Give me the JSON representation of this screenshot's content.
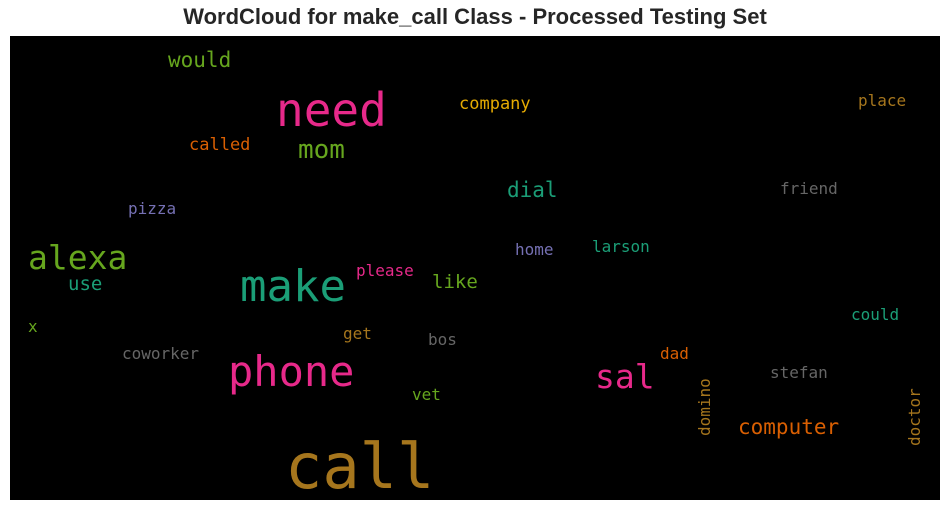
{
  "title": "WordCloud for make_call Class - Processed Testing Set",
  "chart_data": {
    "type": "wordcloud",
    "background": "#000000",
    "words": [
      {
        "text": "call",
        "color": "#a6761d",
        "rotate": false
      },
      {
        "text": "make",
        "color": "#1b9e77",
        "rotate": false
      },
      {
        "text": "phone",
        "color": "#e7298a",
        "rotate": false
      },
      {
        "text": "need",
        "color": "#e7298a",
        "rotate": false
      },
      {
        "text": "alexa",
        "color": "#66a61e",
        "rotate": false
      },
      {
        "text": "sal",
        "color": "#e7298a",
        "rotate": false
      },
      {
        "text": "mom",
        "color": "#66a61e",
        "rotate": false
      },
      {
        "text": "computer",
        "color": "#d95f02",
        "rotate": false
      },
      {
        "text": "would",
        "color": "#66a61e",
        "rotate": false
      },
      {
        "text": "dial",
        "color": "#1b9e77",
        "rotate": false
      },
      {
        "text": "use",
        "color": "#1b9e77",
        "rotate": false
      },
      {
        "text": "like",
        "color": "#66a61e",
        "rotate": false
      },
      {
        "text": "company",
        "color": "#e6ab02",
        "rotate": false
      },
      {
        "text": "place",
        "color": "#a6761d",
        "rotate": false
      },
      {
        "text": "called",
        "color": "#d95f02",
        "rotate": false
      },
      {
        "text": "friend",
        "color": "#666666",
        "rotate": false
      },
      {
        "text": "pizza",
        "color": "#7570b3",
        "rotate": false
      },
      {
        "text": "home",
        "color": "#7570b3",
        "rotate": false
      },
      {
        "text": "larson",
        "color": "#1b9e77",
        "rotate": false
      },
      {
        "text": "please",
        "color": "#e7298a",
        "rotate": false
      },
      {
        "text": "could",
        "color": "#1b9e77",
        "rotate": false
      },
      {
        "text": "get",
        "color": "#a6761d",
        "rotate": false
      },
      {
        "text": "bos",
        "color": "#666666",
        "rotate": false
      },
      {
        "text": "coworker",
        "color": "#666666",
        "rotate": false
      },
      {
        "text": "dad",
        "color": "#d95f02",
        "rotate": false
      },
      {
        "text": "domino",
        "color": "#a6761d",
        "rotate": true
      },
      {
        "text": "doctor",
        "color": "#a6761d",
        "rotate": true
      },
      {
        "text": "stefan",
        "color": "#666666",
        "rotate": false
      },
      {
        "text": "vet",
        "color": "#66a61e",
        "rotate": false
      },
      {
        "text": "x",
        "color": "#66a61e",
        "rotate": false
      }
    ]
  }
}
